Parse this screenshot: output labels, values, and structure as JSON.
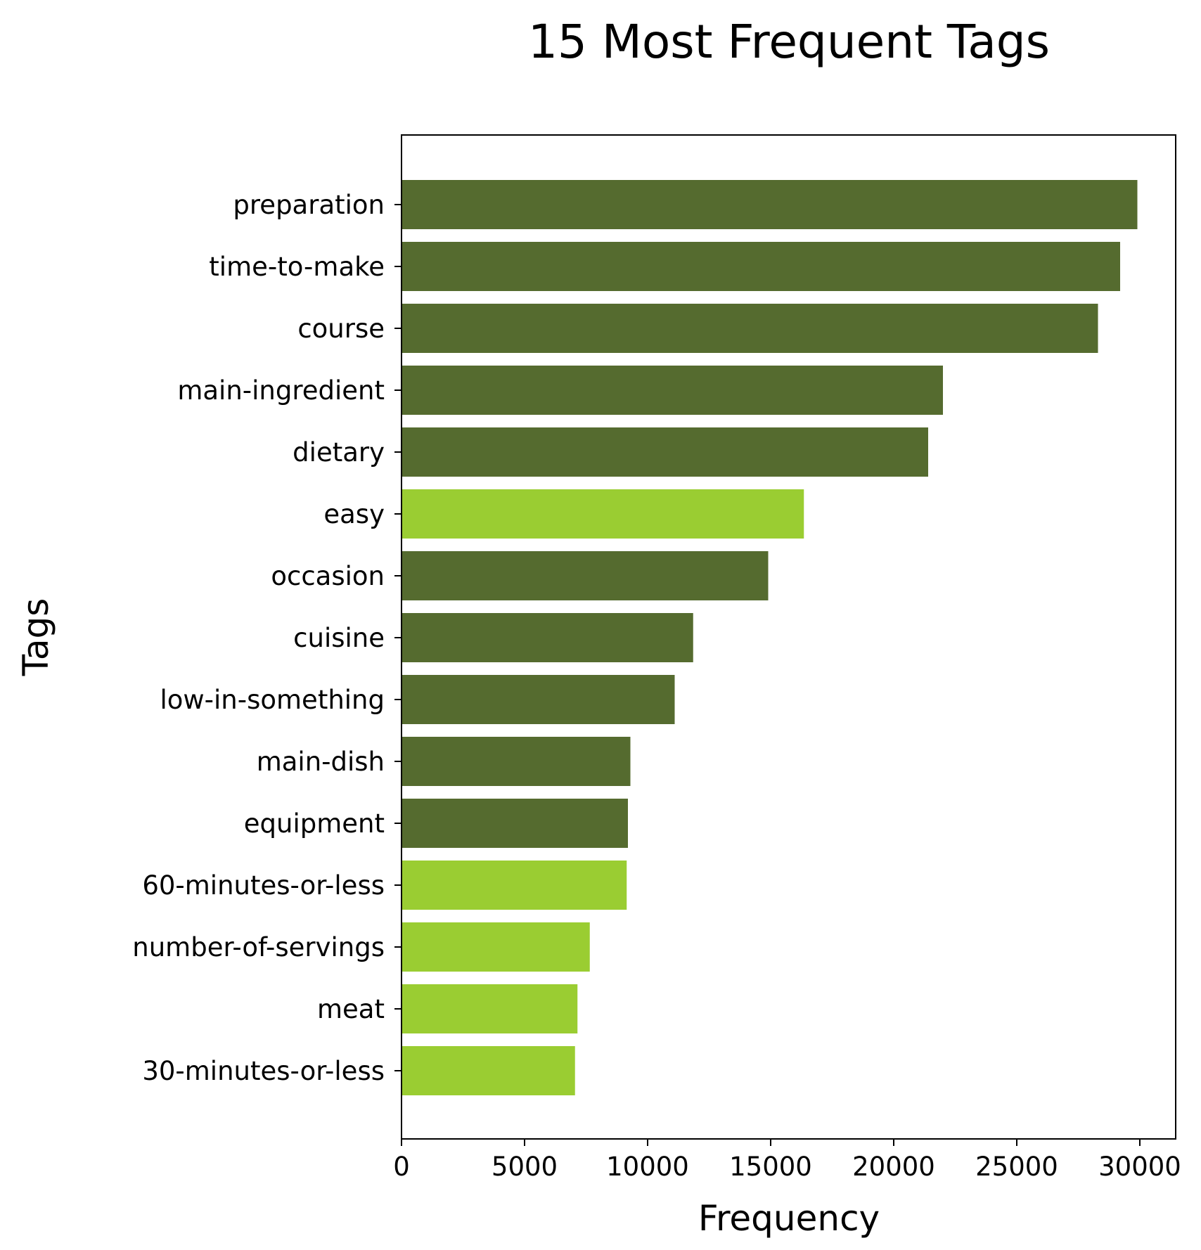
{
  "chart_data": {
    "type": "bar",
    "orientation": "horizontal",
    "title": "15 Most Frequent Tags",
    "xlabel": "Frequency",
    "ylabel": "Tags",
    "xlim": [
      0,
      31500
    ],
    "xticks": [
      0,
      5000,
      10000,
      15000,
      20000,
      25000,
      30000
    ],
    "grid": false,
    "legend": "none",
    "colors": {
      "dark": "#556b2f",
      "light": "#9acd32"
    },
    "bars": [
      {
        "label": "preparation",
        "value": 29900,
        "color": "dark"
      },
      {
        "label": "time-to-make",
        "value": 29200,
        "color": "dark"
      },
      {
        "label": "course",
        "value": 28300,
        "color": "dark"
      },
      {
        "label": "main-ingredient",
        "value": 22000,
        "color": "dark"
      },
      {
        "label": "dietary",
        "value": 21400,
        "color": "dark"
      },
      {
        "label": "easy",
        "value": 16350,
        "color": "light"
      },
      {
        "label": "occasion",
        "value": 14900,
        "color": "dark"
      },
      {
        "label": "cuisine",
        "value": 11850,
        "color": "dark"
      },
      {
        "label": "low-in-something",
        "value": 11100,
        "color": "dark"
      },
      {
        "label": "main-dish",
        "value": 9300,
        "color": "dark"
      },
      {
        "label": "equipment",
        "value": 9200,
        "color": "dark"
      },
      {
        "label": "60-minutes-or-less",
        "value": 9150,
        "color": "light"
      },
      {
        "label": "number-of-servings",
        "value": 7650,
        "color": "light"
      },
      {
        "label": "meat",
        "value": 7150,
        "color": "light"
      },
      {
        "label": "30-minutes-or-less",
        "value": 7050,
        "color": "light"
      }
    ]
  }
}
